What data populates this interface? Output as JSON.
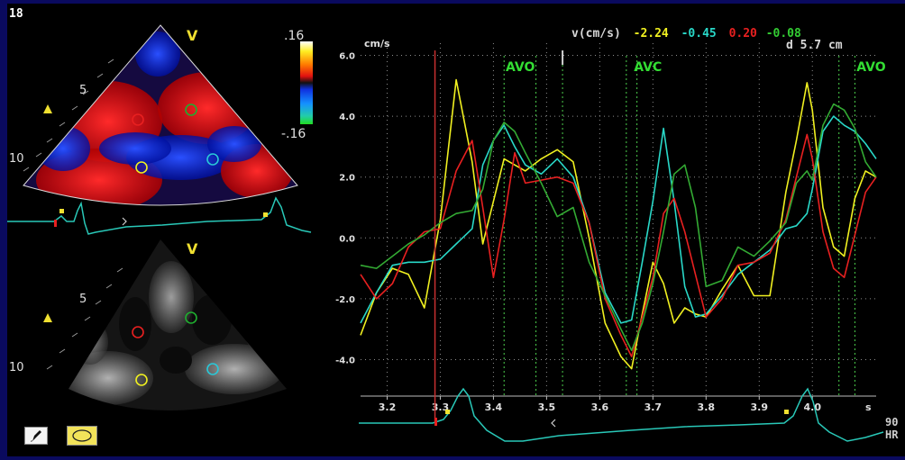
{
  "app": {
    "corner_number": "18"
  },
  "echo_top": {
    "orientation_marker": "V",
    "depth_labels": [
      "5",
      "10"
    ],
    "colorbar_max": ".16",
    "colorbar_min": "-.16",
    "roi_colors": [
      "#e82020",
      "#1fae2f",
      "#f0f020",
      "#29c8d8"
    ]
  },
  "echo_bottom": {
    "orientation_marker": "V",
    "depth_labels": [
      "5",
      "10"
    ]
  },
  "readout": {
    "label": "v(cm/s)",
    "values": [
      "-2.24",
      "-0.45",
      "0.20",
      "-0.08"
    ],
    "value_colors": [
      "#f0f020",
      "#29d8c8",
      "#e82020",
      "#33cc33"
    ],
    "distance": "d 5.7 cm"
  },
  "hr": {
    "value": "90",
    "label": "HR"
  },
  "chart_data": {
    "type": "line",
    "ylabel": "cm/s",
    "xlabel": "s",
    "xlim": [
      3.15,
      4.12
    ],
    "ylim": [
      -5.2,
      6.4
    ],
    "yticks": [
      {
        "v": 6.0,
        "label": "6.0"
      },
      {
        "v": 4.0,
        "label": "4.0"
      },
      {
        "v": 2.0,
        "label": "2.0"
      },
      {
        "v": 0.0,
        "label": "0.0"
      },
      {
        "v": -2.0,
        "label": "-2.0"
      },
      {
        "v": -4.0,
        "label": "-4.0"
      }
    ],
    "xticks": [
      {
        "v": 3.2,
        "label": "3.2"
      },
      {
        "v": 3.3,
        "label": "3.3"
      },
      {
        "v": 3.4,
        "label": "3.4"
      },
      {
        "v": 3.5,
        "label": "3.5"
      },
      {
        "v": 3.6,
        "label": "3.6"
      },
      {
        "v": 3.7,
        "label": "3.7"
      },
      {
        "v": 3.8,
        "label": "3.8"
      },
      {
        "v": 3.9,
        "label": "3.9"
      },
      {
        "v": 4.0,
        "label": "4.0"
      }
    ],
    "grid": true,
    "annotations": [
      {
        "label": "AVO",
        "x": 3.42
      },
      {
        "label": "AVC",
        "x": 3.66
      },
      {
        "label": "AVO",
        "x": 4.08
      }
    ],
    "event_lines_x": [
      3.42,
      3.48,
      3.53,
      3.65,
      3.67,
      4.05,
      4.08
    ],
    "cursor_x": 3.29,
    "marker_x": 3.53,
    "series": [
      {
        "color": "#f0f020",
        "x": [
          3.15,
          3.18,
          3.21,
          3.24,
          3.27,
          3.3,
          3.33,
          3.36,
          3.38,
          3.4,
          3.42,
          3.44,
          3.46,
          3.49,
          3.52,
          3.55,
          3.58,
          3.61,
          3.64,
          3.66,
          3.68,
          3.7,
          3.72,
          3.74,
          3.76,
          3.78,
          3.8,
          3.83,
          3.86,
          3.89,
          3.92,
          3.95,
          3.97,
          3.99,
          4.0,
          4.02,
          4.04,
          4.06,
          4.08,
          4.1,
          4.12
        ],
        "y": [
          -3.2,
          -1.8,
          -1.0,
          -1.2,
          -2.3,
          0.6,
          5.2,
          2.5,
          -0.2,
          1.2,
          2.6,
          2.4,
          2.2,
          2.6,
          2.9,
          2.5,
          0.0,
          -2.8,
          -3.9,
          -4.3,
          -2.5,
          -0.8,
          -1.5,
          -2.8,
          -2.3,
          -2.5,
          -2.6,
          -1.7,
          -0.9,
          -1.9,
          -1.9,
          1.5,
          3.2,
          5.1,
          4.2,
          1.0,
          -0.3,
          -0.6,
          1.3,
          2.2,
          2.0
        ]
      },
      {
        "color": "#29d8c8",
        "x": [
          3.15,
          3.18,
          3.21,
          3.24,
          3.27,
          3.3,
          3.33,
          3.36,
          3.38,
          3.4,
          3.42,
          3.44,
          3.46,
          3.49,
          3.52,
          3.55,
          3.58,
          3.61,
          3.64,
          3.66,
          3.68,
          3.7,
          3.72,
          3.74,
          3.76,
          3.78,
          3.8,
          3.83,
          3.86,
          3.89,
          3.92,
          3.95,
          3.97,
          3.99,
          4.0,
          4.02,
          4.04,
          4.06,
          4.08,
          4.1,
          4.12
        ],
        "y": [
          -2.8,
          -1.8,
          -0.9,
          -0.8,
          -0.8,
          -0.7,
          -0.2,
          0.3,
          2.4,
          3.2,
          3.7,
          3.0,
          2.4,
          2.1,
          2.6,
          2.0,
          0.5,
          -1.8,
          -2.8,
          -2.7,
          -0.8,
          1.2,
          3.6,
          1.2,
          -1.6,
          -2.6,
          -2.5,
          -1.9,
          -1.2,
          -0.8,
          -0.4,
          0.3,
          0.4,
          0.8,
          1.6,
          3.5,
          4.0,
          3.7,
          3.5,
          3.1,
          2.6
        ]
      },
      {
        "color": "#e82020",
        "x": [
          3.15,
          3.18,
          3.21,
          3.24,
          3.27,
          3.3,
          3.33,
          3.36,
          3.38,
          3.4,
          3.42,
          3.44,
          3.46,
          3.49,
          3.52,
          3.55,
          3.58,
          3.61,
          3.64,
          3.66,
          3.68,
          3.7,
          3.72,
          3.74,
          3.76,
          3.78,
          3.8,
          3.83,
          3.86,
          3.89,
          3.92,
          3.95,
          3.97,
          3.99,
          4.0,
          4.02,
          4.04,
          4.06,
          4.08,
          4.1,
          4.12
        ],
        "y": [
          -1.2,
          -2.0,
          -1.5,
          -0.3,
          0.2,
          0.3,
          2.2,
          3.2,
          1.0,
          -1.3,
          0.6,
          2.8,
          1.8,
          1.9,
          2.0,
          1.8,
          0.5,
          -2.0,
          -3.2,
          -3.9,
          -2.6,
          -1.3,
          0.8,
          1.3,
          0.2,
          -1.2,
          -2.6,
          -2.0,
          -0.9,
          -0.8,
          -0.5,
          0.6,
          2.0,
          3.4,
          2.6,
          0.2,
          -1.0,
          -1.3,
          0.1,
          1.5,
          2.0
        ]
      },
      {
        "color": "#33aa33",
        "x": [
          3.15,
          3.18,
          3.21,
          3.24,
          3.27,
          3.3,
          3.33,
          3.36,
          3.38,
          3.4,
          3.42,
          3.44,
          3.46,
          3.49,
          3.52,
          3.55,
          3.58,
          3.61,
          3.64,
          3.66,
          3.68,
          3.7,
          3.72,
          3.74,
          3.76,
          3.78,
          3.8,
          3.83,
          3.86,
          3.89,
          3.92,
          3.95,
          3.97,
          3.99,
          4.0,
          4.02,
          4.04,
          4.06,
          4.08,
          4.1,
          4.12
        ],
        "y": [
          -0.9,
          -1.0,
          -0.6,
          -0.2,
          0.1,
          0.5,
          0.8,
          0.9,
          1.6,
          3.2,
          3.8,
          3.5,
          2.8,
          1.8,
          0.7,
          1.0,
          -0.8,
          -1.9,
          -3.0,
          -3.7,
          -2.8,
          -1.5,
          0.2,
          2.1,
          2.4,
          1.0,
          -1.6,
          -1.4,
          -0.3,
          -0.6,
          -0.1,
          0.5,
          1.8,
          2.2,
          1.9,
          3.7,
          4.4,
          4.2,
          3.6,
          2.5,
          2.0
        ]
      }
    ]
  }
}
